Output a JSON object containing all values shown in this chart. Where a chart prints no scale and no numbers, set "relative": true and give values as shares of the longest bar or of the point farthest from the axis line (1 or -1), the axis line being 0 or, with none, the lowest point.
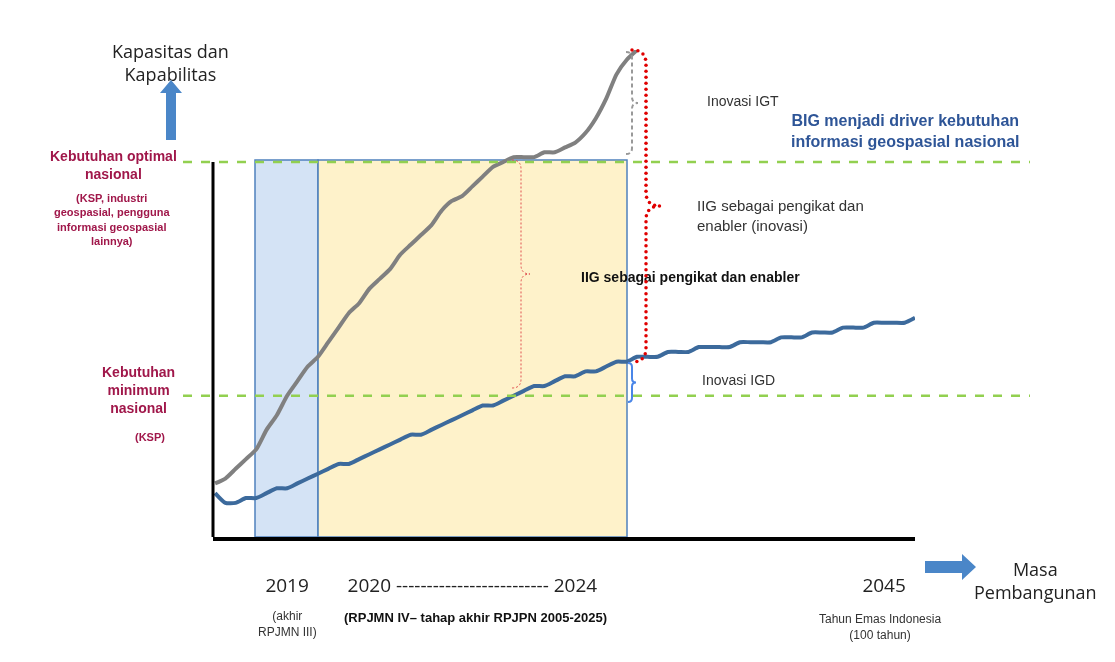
{
  "chart_data": {
    "type": "line",
    "relative": true,
    "grid": false,
    "marker": "none",
    "line_style": "solid",
    "ylabel": "Kapasitas dan Kapabilitas",
    "xlabel": "Masa Pembangunan",
    "categories": [
      null,
      null,
      null,
      null,
      null,
      null,
      null,
      "2019",
      null,
      null,
      null,
      null,
      null,
      null,
      null,
      null,
      null,
      null,
      null,
      null,
      null,
      null,
      null,
      null,
      null,
      "2020 ------------------------- 2024",
      null,
      null,
      null,
      null,
      null,
      null,
      null,
      null,
      null,
      null,
      null,
      null,
      null,
      null,
      null,
      null,
      null,
      null,
      null,
      null,
      null,
      null,
      null,
      null,
      null,
      null,
      null,
      null,
      null,
      null,
      null,
      null,
      null,
      null,
      null,
      null,
      null,
      null,
      null,
      "2045",
      null,
      null,
      null
    ],
    "series": [
      {
        "color": "#808080",
        "values": [
          0.11,
          0.12,
          0.14,
          0.16,
          0.18,
          0.22,
          0.25,
          0.29,
          0.32,
          0.35,
          0.37,
          0.4,
          0.43,
          0.46,
          0.48,
          0.51,
          0.53,
          0.55,
          0.58,
          0.6,
          0.62,
          0.64,
          0.67,
          0.69,
          0.7,
          0.72,
          0.74,
          0.76,
          0.77,
          0.78,
          0.78,
          0.78,
          0.79,
          0.79,
          0.8,
          0.81,
          0.83,
          0.86,
          0.9,
          0.95,
          0.98,
          1.0,
          null,
          null,
          null,
          null,
          null,
          null,
          null,
          null,
          null,
          null,
          null,
          null,
          null,
          null,
          null,
          null,
          null,
          null,
          null,
          null,
          null,
          null,
          null,
          null,
          null,
          null,
          null
        ]
      },
      {
        "color": "#3c6a9c",
        "values": [
          0.09,
          0.07,
          0.07,
          0.08,
          0.08,
          0.09,
          0.1,
          0.1,
          0.11,
          0.12,
          0.13,
          0.14,
          0.15,
          0.15,
          0.16,
          0.17,
          0.18,
          0.19,
          0.2,
          0.21,
          0.21,
          0.22,
          0.23,
          0.24,
          0.25,
          0.26,
          0.27,
          0.27,
          0.28,
          0.29,
          0.3,
          0.31,
          0.31,
          0.32,
          0.33,
          0.33,
          0.34,
          0.34,
          0.35,
          0.36,
          0.36,
          0.37,
          0.37,
          0.37,
          0.38,
          0.38,
          0.38,
          0.39,
          0.39,
          0.39,
          0.39,
          0.4,
          0.4,
          0.4,
          0.4,
          0.41,
          0.41,
          0.41,
          0.42,
          0.42,
          0.42,
          0.43,
          0.43,
          0.43,
          0.44,
          0.44,
          0.44,
          0.44,
          0.45
        ]
      }
    ],
    "ref_lines": [
      {
        "axis": "y",
        "value": 0.77,
        "label": "Kebutuhan optimal nasional",
        "color": "#92d050",
        "line_style": "dashed"
      },
      {
        "axis": "y",
        "value": 0.29,
        "label": "Kebutuhan minimum nasional",
        "color": "#92d050",
        "line_style": "dashed"
      }
    ],
    "annotations": [
      "(KSP, industri geospasial, pengguna informasi geospasial lainnya)",
      "(KSP)",
      "Inovasi IGT",
      "BIG menjadi driver kebutuhan informasi geospasial nasional",
      "IIG sebagai pengikat dan enabler (inovasi)",
      "IIG sebagai pengikat dan enabler",
      "Inovasi IGD",
      "(akhir RPJMN III)",
      "(RPJMN IV– tahap akhir RPJPN 2005-2025)",
      "Tahun Emas Indonesia (100 tahun)"
    ]
  }
}
